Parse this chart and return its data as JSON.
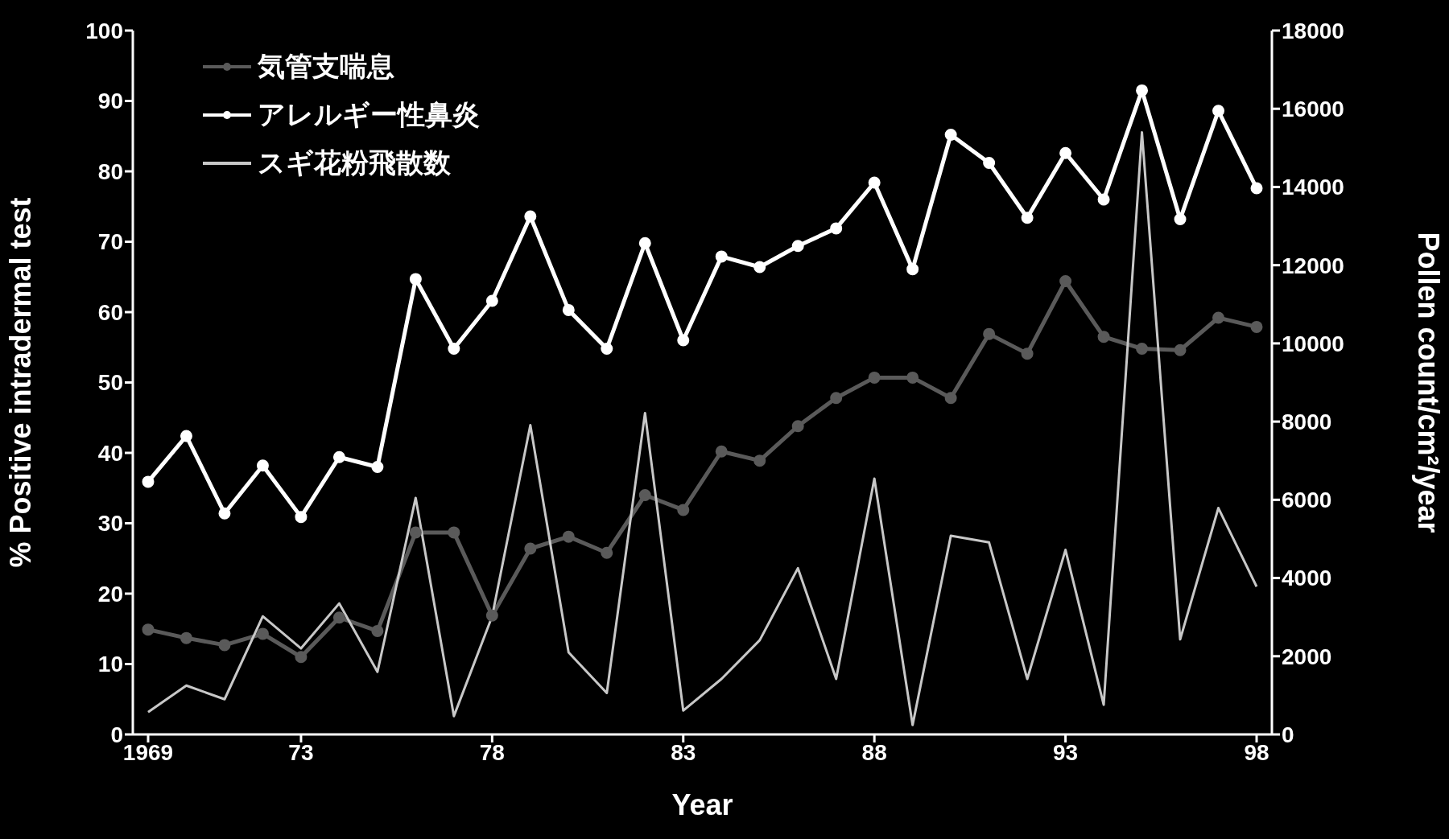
{
  "chart_data": {
    "type": "line",
    "xlabel": "Year",
    "ylabel": "% Positive intradermal test",
    "y2label": "Pollen count/cm²/year",
    "x": [
      1969,
      1970,
      1971,
      1972,
      1973,
      1974,
      1975,
      1976,
      1977,
      1978,
      1979,
      1980,
      1981,
      1982,
      1983,
      1984,
      1985,
      1986,
      1987,
      1988,
      1989,
      1990,
      1991,
      1992,
      1993,
      1994,
      1995,
      1996,
      1997,
      1998
    ],
    "series": [
      {
        "name": "気管支喘息",
        "color": "#5a5a5a",
        "marker": "circle",
        "values": [
          14.9,
          13.7,
          12.7,
          14.3,
          11.0,
          16.6,
          14.7,
          28.7,
          28.7,
          16.9,
          26.4,
          28.1,
          25.8,
          34.0,
          31.9,
          40.2,
          38.9,
          43.8,
          47.8,
          50.7,
          50.7,
          47.8,
          56.9,
          54.1,
          64.4,
          56.5,
          54.8,
          54.6,
          59.2,
          57.9
        ]
      },
      {
        "name": "アレルギー性鼻炎",
        "color": "#ffffff",
        "marker": "circle",
        "values": [
          35.9,
          42.4,
          31.4,
          38.2,
          30.9,
          39.4,
          38.0,
          64.7,
          54.8,
          61.6,
          73.6,
          60.3,
          54.8,
          69.8,
          56.0,
          67.9,
          66.4,
          69.4,
          71.9,
          78.4,
          66.1,
          85.2,
          81.2,
          73.4,
          82.6,
          76.0,
          91.5,
          73.2,
          88.6,
          77.6
        ]
      },
      {
        "name": "スギ花粉飛散数",
        "color": "#c8c8c8",
        "marker": "none",
        "axis": "y2",
        "values": [
          570,
          1250,
          900,
          3020,
          2200,
          3350,
          1600,
          6050,
          470,
          3020,
          7910,
          2100,
          1060,
          8220,
          610,
          1420,
          2410,
          4250,
          1420,
          6540,
          240,
          5080,
          4910,
          1420,
          4720,
          760,
          15400,
          2430,
          5790,
          3780
        ]
      }
    ],
    "xlim": [
      1968.6,
      1998.4
    ],
    "xticks": [
      {
        "value": 1969,
        "label": "1969"
      },
      {
        "value": 1973,
        "label": "73"
      },
      {
        "value": 1978,
        "label": "78"
      },
      {
        "value": 1983,
        "label": "83"
      },
      {
        "value": 1988,
        "label": "88"
      },
      {
        "value": 1993,
        "label": "93"
      },
      {
        "value": 1998,
        "label": "98"
      }
    ],
    "ylim": [
      0,
      100
    ],
    "yticks": [
      0,
      10,
      20,
      30,
      40,
      50,
      60,
      70,
      80,
      90,
      100
    ],
    "y2lim": [
      0,
      18000
    ],
    "y2ticks": [
      0,
      2000,
      4000,
      6000,
      8000,
      10000,
      12000,
      14000,
      16000,
      18000
    ],
    "legend": "top left"
  }
}
